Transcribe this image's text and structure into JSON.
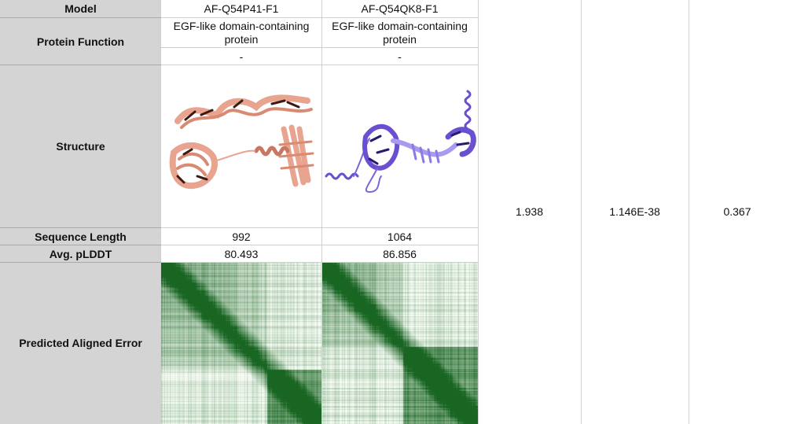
{
  "headers": {
    "model": "Model",
    "function": "Protein Function",
    "structure": "Structure",
    "length": "Sequence Length",
    "plddt": "Avg. pLDDT",
    "pae": "Predicted Aligned Error"
  },
  "models": [
    {
      "id": "AF-Q54P41-F1",
      "function": "EGF-like domain-containing protein",
      "extra": "-",
      "length": "992",
      "plddt": "80.493",
      "color": "#e8a48f"
    },
    {
      "id": "AF-Q54QK8-F1",
      "function": "EGF-like domain-containing protein",
      "extra": "-",
      "length": "1064",
      "plddt": "86.856",
      "color": "#6a4fd0"
    }
  ],
  "scores": [
    "1.938",
    "1.146E-38",
    "0.367"
  ]
}
